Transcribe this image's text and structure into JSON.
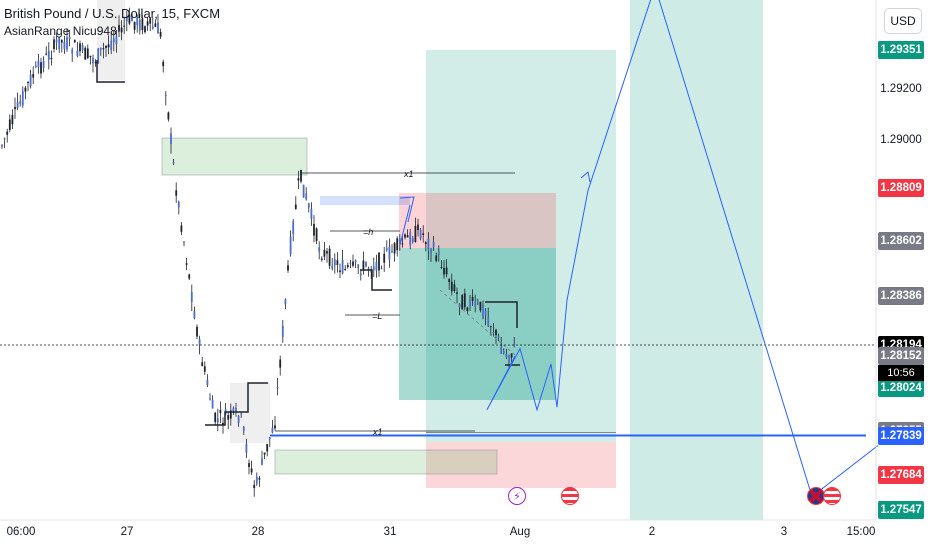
{
  "header": {
    "title": "British Pound / U.S. Dollar, 15, FXCM",
    "indicator": "AsianRange Nicu948",
    "currency_button": "USD"
  },
  "countdown": "10:56",
  "colors": {
    "green": "#089981",
    "red": "#f23645",
    "blue": "#2962ff",
    "gray": "#787b86",
    "black": "#000000"
  },
  "drawing_labels": {
    "top_x1": "x1",
    "bottom_x1": "x1",
    "eq_high": "=h",
    "eq_low": "=L"
  },
  "events": [
    {
      "name": "lightning-icon",
      "glyph": "⚡"
    },
    {
      "name": "us-flag-icon",
      "glyph": ""
    },
    {
      "name": "uk-flag-icon",
      "glyph": ""
    },
    {
      "name": "us-flag-icon",
      "glyph": ""
    }
  ],
  "chart_data": {
    "type": "candlestick",
    "symbol": "GBPUSD",
    "timeframe": "15",
    "ylim": [
      1.274,
      1.296
    ],
    "x_ticks": [
      "06:00",
      "27",
      "28",
      "31",
      "Aug",
      "2",
      "3",
      "15:00"
    ],
    "price_scale_labels": [
      {
        "value": "1.29351",
        "color": "green"
      },
      {
        "value": "1.29200",
        "color": "plain"
      },
      {
        "value": "1.29000",
        "color": "plain"
      },
      {
        "value": "1.28809",
        "color": "red"
      },
      {
        "value": "1.28602",
        "color": "gray"
      },
      {
        "value": "1.28386",
        "color": "gray"
      },
      {
        "value": "1.28194",
        "color": "black"
      },
      {
        "value": "1.28152",
        "color": "gray"
      },
      {
        "value": "1.28024",
        "color": "green"
      },
      {
        "value": "1.27855",
        "color": "gray"
      },
      {
        "value": "1.27839",
        "color": "blue"
      },
      {
        "value": "1.27684",
        "color": "red"
      },
      {
        "value": "1.27547",
        "color": "green"
      }
    ],
    "last_price": 1.28194,
    "support_line": 1.27839,
    "path_points": [
      1.2815,
      1.2794,
      1.2818,
      1.2794,
      1.2812,
      1.2795,
      1.2837,
      1.288,
      1.296,
      1.276,
      1.278
    ]
  }
}
